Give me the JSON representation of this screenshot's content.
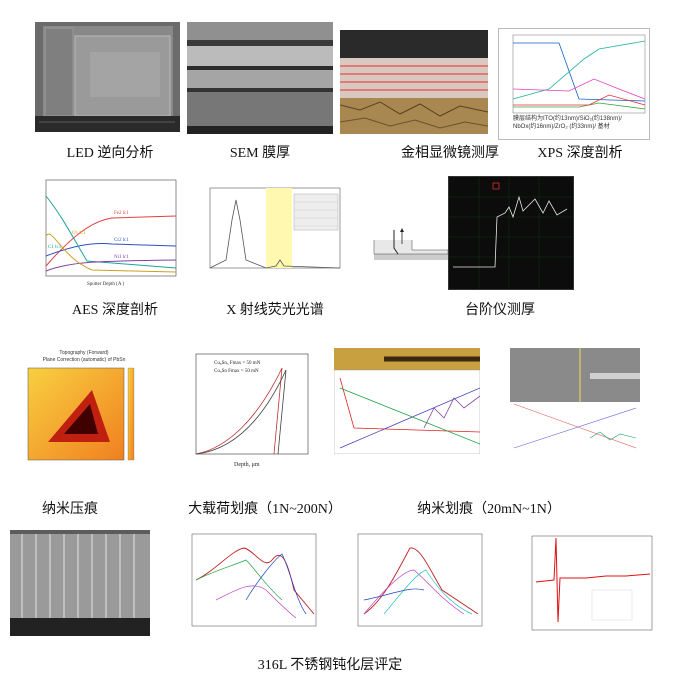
{
  "captions": {
    "led": "LED 逆向分析",
    "sem": "SEM 膜厚",
    "metallo": "金相显微镜测厚",
    "xps": "XPS 深度剖析",
    "aes": "AES 深度剖析",
    "xrf": "X 射线荧光光谱",
    "profilometer": "台阶仪测厚",
    "nanoindent": "纳米压痕",
    "scratch_large": "大载荷划痕（1N~200N）",
    "scratch_nano": "纳米划痕（20mN~1N）",
    "steel": "316L 不锈钢钝化层评定"
  },
  "xps_panel": {
    "note_line1": "膜层结构为ITO(约13nm)/SiO₂(约138nm)/",
    "note_line2": "NbOx(约16nm)/ZrO₂ (约33nm)/ 基材"
  },
  "aes_panel": {
    "peaks": [
      "Fe2 lc1",
      "Cr2 lc1",
      "O1 lc1",
      "Ni1 lc1",
      "C1 lc1"
    ],
    "xlabel": "Sputter Depth (A )",
    "ylabel": "Atomic Concentration (%)"
  },
  "indent_panel": {
    "title1": "Topography (Forward)",
    "title2": "Plane Correction (automatic) of PbSn"
  },
  "load_panel": {
    "legend1": "Cu₆Sn₅ Fmax = 50 mN",
    "legend2": "Cu₃Sn  Fmax = 50 mN",
    "xlabel": "Depth, μm",
    "ylabel": "Load, mN"
  },
  "colors": {
    "sem_gray": "#9a9a9a",
    "led_gray": "#7a7a7a",
    "metallo_gold": "#b89a5a",
    "heat_red": "#c02010",
    "heat_yellow": "#f8d040"
  }
}
